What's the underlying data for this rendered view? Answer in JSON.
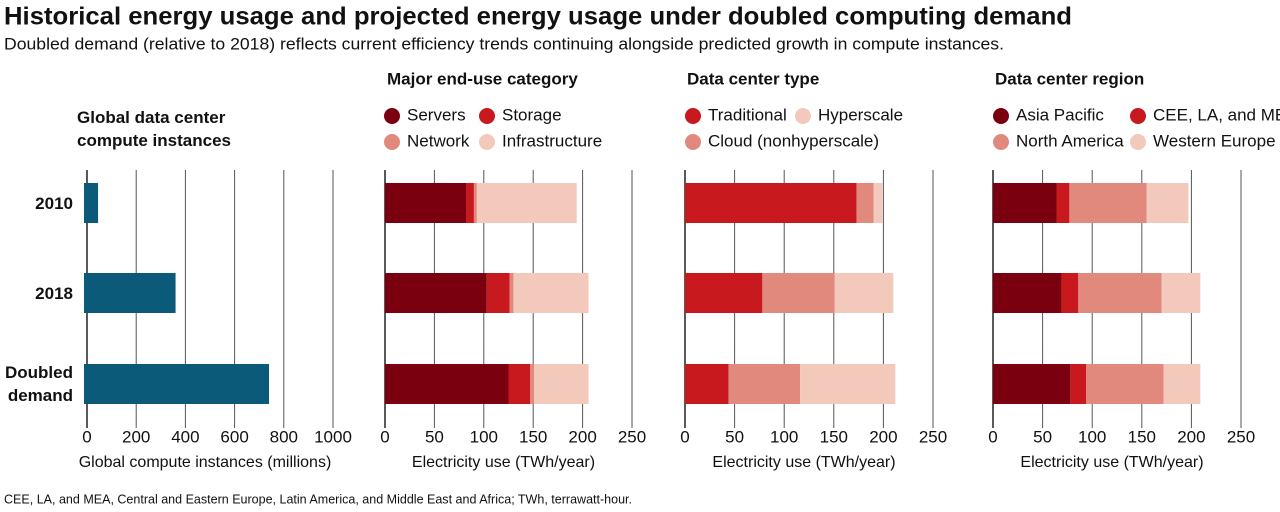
{
  "title": "Historical energy usage and projected energy usage under doubled computing demand",
  "subtitle": "Doubled demand (relative to 2018) reflects current efficiency trends continuing alongside predicted growth in compute instances.",
  "footnote": "CEE, LA, and MEA, Central and Eastern Europe, Latin America, and Middle East and Africa; TWh, terrawatt-hour.",
  "chart_data": [
    {
      "type": "bar",
      "title": "Global data center compute instances",
      "xlabel": "Global compute instances (millions)",
      "categories": [
        "2010",
        "2018",
        "Doubled demand"
      ],
      "values": [
        45,
        360,
        740
      ],
      "color": "#0b5a7a",
      "xlim": [
        0,
        1000
      ],
      "xticks": [
        0,
        200,
        400,
        600,
        800,
        1000
      ],
      "grid": true
    },
    {
      "type": "stacked_bar",
      "title": "Major end-use category",
      "xlabel": "Electricity use (TWh/year)",
      "series": [
        {
          "name": "Servers",
          "color": "#7a0010",
          "values": [
            82,
            103,
            125
          ]
        },
        {
          "name": "Storage",
          "color": "#c8191f",
          "values": [
            8,
            23,
            22
          ]
        },
        {
          "name": "Network",
          "color": "#e2897e",
          "values": [
            3,
            4,
            4
          ]
        },
        {
          "name": "Infrastructure",
          "color": "#f2c9bb",
          "values": [
            101,
            76,
            55
          ]
        }
      ],
      "xlim": [
        0,
        250
      ],
      "xticks": [
        0,
        50,
        100,
        150,
        200,
        250
      ],
      "grid": true
    },
    {
      "type": "stacked_bar",
      "title": "Data center type",
      "xlabel": "Electricity use (TWh/year)",
      "series": [
        {
          "name": "Traditional",
          "color": "#c8191f",
          "values": [
            173,
            78,
            44
          ]
        },
        {
          "name": "Cloud (nonhyperscale)",
          "color": "#e2897e",
          "values": [
            17,
            73,
            72
          ]
        },
        {
          "name": "Hyperscale",
          "color": "#f2c9bb",
          "values": [
            9,
            59,
            96
          ]
        }
      ],
      "xlim": [
        0,
        250
      ],
      "xticks": [
        0,
        50,
        100,
        150,
        200,
        250
      ],
      "grid": true
    },
    {
      "type": "stacked_bar",
      "title": "Data center region",
      "xlabel": "Electricity use (TWh/year)",
      "series": [
        {
          "name": "Asia Pacific",
          "color": "#7a0010",
          "values": [
            64,
            69,
            78
          ]
        },
        {
          "name": "CEE, LA, and MEA",
          "color": "#c8191f",
          "values": [
            13,
            17,
            16
          ]
        },
        {
          "name": "North America",
          "color": "#e2897e",
          "values": [
            78,
            84,
            78
          ]
        },
        {
          "name": "Western Europe",
          "color": "#f2c9bb",
          "values": [
            42,
            39,
            37
          ]
        }
      ],
      "xlim": [
        0,
        250
      ],
      "xticks": [
        0,
        50,
        100,
        150,
        200,
        250
      ],
      "grid": true
    }
  ]
}
